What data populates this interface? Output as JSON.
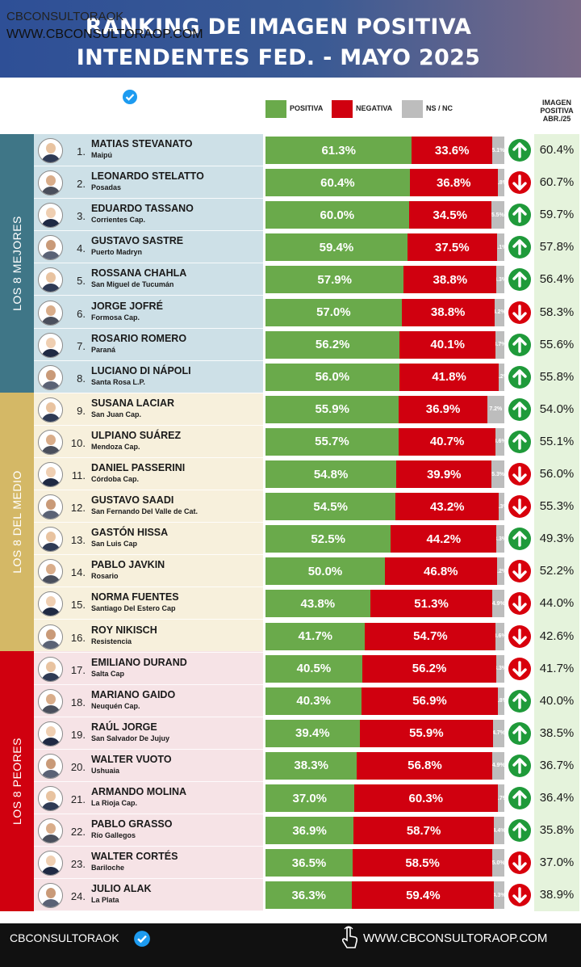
{
  "header": {
    "title_line1": "RANKING DE IMAGEN POSITIVA",
    "title_line2": "INTENDENTES FED. - MAYO 2025"
  },
  "brand": {
    "name": "CBCONSULTORAOK",
    "url": "WWW.CBCONSULTORAOP.COM"
  },
  "legend": {
    "positive": "POSITIVA",
    "negative": "NEGATIVA",
    "ns_nc": "NS / NC"
  },
  "previous_header": [
    "IMAGEN",
    "POSITIVA",
    "ABR./25"
  ],
  "groups": [
    {
      "label": "LOS 8 MEJORES"
    },
    {
      "label": "LOS 8 DEL MEDIO"
    },
    {
      "label": "LOS 8 PEORES"
    }
  ],
  "colors": {
    "positive": "#6aaa4b",
    "negative": "#d0000f",
    "ns_nc": "#bdbdbd",
    "arrow_up": "#1f9a3a",
    "arrow_down": "#d8000c",
    "group_best": "#3f7687",
    "group_middle": "#d4b866",
    "group_worst": "#d0000f"
  },
  "chart_data": {
    "type": "bar",
    "stacked": true,
    "orientation": "horizontal",
    "title": "RANKING DE IMAGEN POSITIVA INTENDENTES FED. - MAYO 2025",
    "series_names": [
      "POSITIVA",
      "NEGATIVA",
      "NS / NC"
    ],
    "rows": [
      {
        "rank": "1.",
        "name": "MATIAS STEVANATO",
        "city": "Maipú",
        "pos": 61.3,
        "neg": 33.6,
        "ns": 5.1,
        "pos_label": "61.3%",
        "neg_label": "33.6%",
        "ns_label": "5.1%",
        "trend": "up",
        "prev": "60.4%"
      },
      {
        "rank": "2.",
        "name": "LEONARDO STELATTO",
        "city": "Posadas",
        "pos": 60.4,
        "neg": 36.8,
        "ns": 2.8,
        "pos_label": "60.4%",
        "neg_label": "36.8%",
        "ns_label": "2.8%",
        "trend": "down",
        "prev": "60.7%"
      },
      {
        "rank": "3.",
        "name": "EDUARDO TASSANO",
        "city": "Corrientes Cap.",
        "pos": 60.0,
        "neg": 34.5,
        "ns": 5.5,
        "pos_label": "60.0%",
        "neg_label": "34.5%",
        "ns_label": "5.5%",
        "trend": "up",
        "prev": "59.7%"
      },
      {
        "rank": "4.",
        "name": "GUSTAVO SASTRE",
        "city": "Puerto Madryn",
        "pos": 59.4,
        "neg": 37.5,
        "ns": 3.1,
        "pos_label": "59.4%",
        "neg_label": "37.5%",
        "ns_label": "3.1%",
        "trend": "up",
        "prev": "57.8%"
      },
      {
        "rank": "5.",
        "name": "ROSSANA CHAHLA",
        "city": "San Miguel de Tucumán",
        "pos": 57.9,
        "neg": 38.8,
        "ns": 3.3,
        "pos_label": "57.9%",
        "neg_label": "38.8%",
        "ns_label": "3.3%",
        "trend": "up",
        "prev": "56.4%"
      },
      {
        "rank": "6.",
        "name": "JORGE JOFRÉ",
        "city": "Formosa Cap.",
        "pos": 57.0,
        "neg": 38.8,
        "ns": 4.2,
        "pos_label": "57.0%",
        "neg_label": "38.8%",
        "ns_label": "4.2%",
        "trend": "down",
        "prev": "58.3%"
      },
      {
        "rank": "7.",
        "name": "ROSARIO ROMERO",
        "city": "Paraná",
        "pos": 56.2,
        "neg": 40.1,
        "ns": 3.7,
        "pos_label": "56.2%",
        "neg_label": "40.1%",
        "ns_label": "3.7%",
        "trend": "up",
        "prev": "55.6%"
      },
      {
        "rank": "8.",
        "name": "LUCIANO DI NÁPOLI",
        "city": "Santa Rosa L.P.",
        "pos": 56.0,
        "neg": 41.8,
        "ns": 2.2,
        "pos_label": "56.0%",
        "neg_label": "41.8%",
        "ns_label": "2.2%",
        "trend": "up",
        "prev": "55.8%"
      },
      {
        "rank": "9.",
        "name": "SUSANA LACIAR",
        "city": "San Juan Cap.",
        "pos": 55.9,
        "neg": 36.9,
        "ns": 7.2,
        "pos_label": "55.9%",
        "neg_label": "36.9%",
        "ns_label": "7.2%",
        "trend": "up",
        "prev": "54.0%"
      },
      {
        "rank": "10.",
        "name": "ULPIANO SUÁREZ",
        "city": "Mendoza Cap.",
        "pos": 55.7,
        "neg": 40.7,
        "ns": 3.6,
        "pos_label": "55.7%",
        "neg_label": "40.7%",
        "ns_label": "3.6%",
        "trend": "up",
        "prev": "55.1%"
      },
      {
        "rank": "11.",
        "name": "DANIEL PASSERINI",
        "city": "Córdoba Cap.",
        "pos": 54.8,
        "neg": 39.9,
        "ns": 5.3,
        "pos_label": "54.8%",
        "neg_label": "39.9%",
        "ns_label": "5.3%",
        "trend": "down",
        "prev": "56.0%"
      },
      {
        "rank": "12.",
        "name": "GUSTAVO SAADI",
        "city": "San Fernando Del Valle de Cat.",
        "pos": 54.5,
        "neg": 43.2,
        "ns": 2.3,
        "pos_label": "54.5%",
        "neg_label": "43.2%",
        "ns_label": "2.3%",
        "trend": "down",
        "prev": "55.3%"
      },
      {
        "rank": "13.",
        "name": "GASTÓN HISSA",
        "city": "San Luis Cap",
        "pos": 52.5,
        "neg": 44.2,
        "ns": 3.3,
        "pos_label": "52.5%",
        "neg_label": "44.2%",
        "ns_label": "3.3%",
        "trend": "up",
        "prev": "49.3%"
      },
      {
        "rank": "14.",
        "name": "PABLO JAVKIN",
        "city": "Rosario",
        "pos": 50.0,
        "neg": 46.8,
        "ns": 3.2,
        "pos_label": "50.0%",
        "neg_label": "46.8%",
        "ns_label": "3.2%",
        "trend": "down",
        "prev": "52.2%"
      },
      {
        "rank": "15.",
        "name": "NORMA FUENTES",
        "city": "Santiago Del Estero Cap",
        "pos": 43.8,
        "neg": 51.3,
        "ns": 4.9,
        "pos_label": "43.8%",
        "neg_label": "51.3%",
        "ns_label": "4.9%",
        "trend": "down",
        "prev": "44.0%"
      },
      {
        "rank": "16.",
        "name": "ROY NIKISCH",
        "city": "Resistencia",
        "pos": 41.7,
        "neg": 54.7,
        "ns": 3.6,
        "pos_label": "41.7%",
        "neg_label": "54.7%",
        "ns_label": "3.6%",
        "trend": "down",
        "prev": "42.6%"
      },
      {
        "rank": "17.",
        "name": "EMILIANO DURAND",
        "city": "Salta Cap",
        "pos": 40.5,
        "neg": 56.2,
        "ns": 3.3,
        "pos_label": "40.5%",
        "neg_label": "56.2%",
        "ns_label": "3.3%",
        "trend": "down",
        "prev": "41.7%"
      },
      {
        "rank": "18.",
        "name": "MARIANO GAIDO",
        "city": "Neuquén Cap.",
        "pos": 40.3,
        "neg": 56.9,
        "ns": 2.8,
        "pos_label": "40.3%",
        "neg_label": "56.9%",
        "ns_label": "2.8%",
        "trend": "up",
        "prev": "40.0%"
      },
      {
        "rank": "19.",
        "name": "RAÚL JORGE",
        "city": "San Salvador De Jujuy",
        "pos": 39.4,
        "neg": 55.9,
        "ns": 4.7,
        "pos_label": "39.4%",
        "neg_label": "55.9%",
        "ns_label": "4.7%",
        "trend": "up",
        "prev": "38.5%"
      },
      {
        "rank": "20.",
        "name": "WALTER VUOTO",
        "city": "Ushuaia",
        "pos": 38.3,
        "neg": 56.8,
        "ns": 4.9,
        "pos_label": "38.3%",
        "neg_label": "56.8%",
        "ns_label": "4.9%",
        "trend": "up",
        "prev": "36.7%"
      },
      {
        "rank": "21.",
        "name": "ARMANDO MOLINA",
        "city": "La Rioja Cap.",
        "pos": 37.0,
        "neg": 60.3,
        "ns": 2.7,
        "pos_label": "37.0%",
        "neg_label": "60.3%",
        "ns_label": "2.7%",
        "trend": "up",
        "prev": "36.4%"
      },
      {
        "rank": "22.",
        "name": "PABLO GRASSO",
        "city": "Río Gallegos",
        "pos": 36.9,
        "neg": 58.7,
        "ns": 4.4,
        "pos_label": "36.9%",
        "neg_label": "58.7%",
        "ns_label": "4.4%",
        "trend": "up",
        "prev": "35.8%"
      },
      {
        "rank": "23.",
        "name": "WALTER CORTÉS",
        "city": "Bariloche",
        "pos": 36.5,
        "neg": 58.5,
        "ns": 5.0,
        "pos_label": "36.5%",
        "neg_label": "58.5%",
        "ns_label": "5.0%",
        "trend": "down",
        "prev": "37.0%"
      },
      {
        "rank": "24.",
        "name": "JULIO ALAK",
        "city": "La Plata",
        "pos": 36.3,
        "neg": 59.4,
        "ns": 4.3,
        "pos_label": "36.3%",
        "neg_label": "59.4%",
        "ns_label": "4.3%",
        "trend": "down",
        "prev": "38.9%"
      }
    ]
  },
  "footer": {
    "left": "CBCONSULTORAOK",
    "right": "WWW.CBCONSULTORAOP.COM"
  }
}
